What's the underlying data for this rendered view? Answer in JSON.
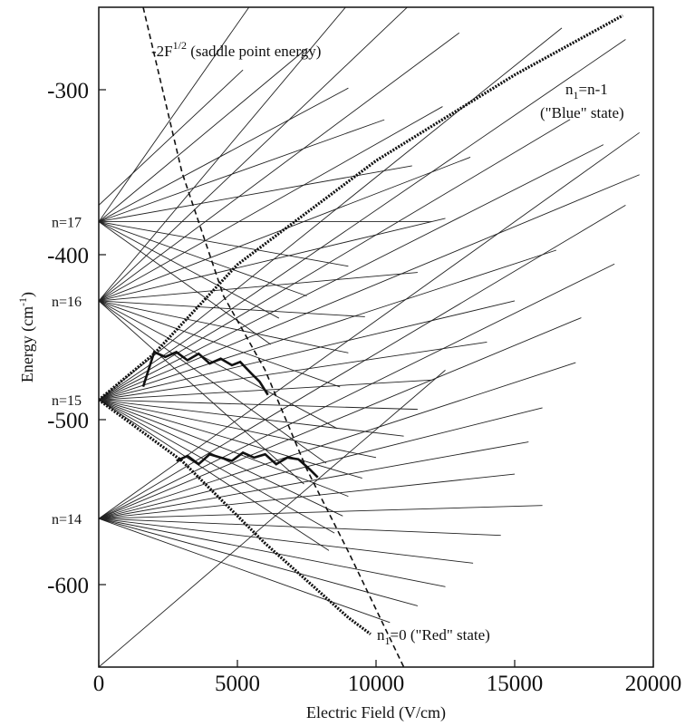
{
  "chart_data": {
    "type": "line",
    "title": "",
    "xlabel": "Electric Field (V/cm)",
    "ylabel": "Energy (cm^-1)",
    "xlim": [
      0,
      20000
    ],
    "ylim": [
      -650,
      -250
    ],
    "x_ticks": [
      0,
      5000,
      10000,
      15000,
      20000
    ],
    "y_ticks": [
      -300,
      -400,
      -500,
      -600
    ],
    "levels": [
      {
        "label": "n=14",
        "energy": -560
      },
      {
        "label": "n=15",
        "energy": -488
      },
      {
        "label": "n=16",
        "energy": -428
      },
      {
        "label": "n=17",
        "energy": -380
      }
    ],
    "saddle_curve": {
      "label": "-2F^(1/2) (saddle point energy)",
      "label_text": "-2F",
      "label_sup": "1/2",
      "label_rest": " (saddle point energy)",
      "style": "dashed",
      "points": [
        [
          1600,
          -250
        ],
        [
          3000,
          -350
        ],
        [
          4500,
          -425
        ],
        [
          6000,
          -470
        ],
        [
          7500,
          -530
        ],
        [
          9000,
          -580
        ],
        [
          11000,
          -650
        ]
      ]
    },
    "blue_state": {
      "label": "n1=n-1 (\"Blue\" state)",
      "line1_main": "n",
      "line1_sub": "1",
      "line1_rest": "=n-1",
      "line2": "(\"Blue\" state)",
      "style": "dotted-bold",
      "points": [
        [
          0,
          -488
        ],
        [
          2000,
          -460
        ],
        [
          5000,
          -406
        ],
        [
          10000,
          -343
        ],
        [
          15000,
          -291
        ],
        [
          18900,
          -255
        ]
      ]
    },
    "red_state": {
      "label": "n1=0 (\"Red\" state)",
      "main": "n",
      "sub": "1",
      "rest": "=0 (\"Red\" state)",
      "style": "dotted-bold",
      "points": [
        [
          0,
          -488
        ],
        [
          3000,
          -525
        ],
        [
          6000,
          -575
        ],
        [
          9000,
          -620
        ],
        [
          9800,
          -630
        ]
      ]
    },
    "avoided_crossing_paths": [
      {
        "name": "upper-crossing",
        "points": [
          [
            1600,
            -480
          ],
          [
            2000,
            -459
          ],
          [
            2400,
            -462
          ],
          [
            2800,
            -459
          ],
          [
            3200,
            -464
          ],
          [
            3600,
            -460
          ],
          [
            4000,
            -466
          ],
          [
            4400,
            -463
          ],
          [
            4800,
            -467
          ],
          [
            5100,
            -465
          ],
          [
            5500,
            -472
          ],
          [
            5800,
            -477
          ],
          [
            6100,
            -485
          ]
        ]
      },
      {
        "name": "lower-crossing",
        "points": [
          [
            2800,
            -525
          ],
          [
            3200,
            -522
          ],
          [
            3600,
            -527
          ],
          [
            4000,
            -521
          ],
          [
            4400,
            -523
          ],
          [
            4800,
            -525
          ],
          [
            5200,
            -520
          ],
          [
            5600,
            -523
          ],
          [
            6000,
            -521
          ],
          [
            6400,
            -527
          ],
          [
            6800,
            -523
          ],
          [
            7200,
            -524
          ],
          [
            7600,
            -530
          ],
          [
            7900,
            -535
          ]
        ]
      }
    ],
    "annotation_groups": [
      {
        "group": "unlabeled Stark manifold lines (n=17 fan)"
      },
      {
        "group": "unlabeled Stark manifold lines (n=16 fan)"
      },
      {
        "group": "unlabeled Stark manifold lines (n=15 fan)"
      },
      {
        "group": "unlabeled Stark manifold lines (n=14 fan)"
      }
    ]
  }
}
